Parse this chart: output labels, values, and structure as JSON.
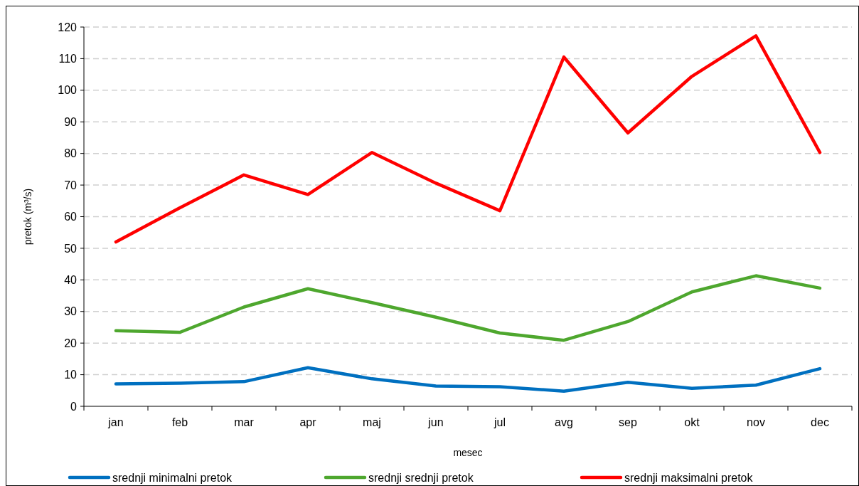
{
  "chart_data": {
    "type": "line",
    "xlabel": "mesec",
    "ylabel": "pretok (m³/s)",
    "categories": [
      "jan",
      "feb",
      "mar",
      "apr",
      "maj",
      "jun",
      "jul",
      "avg",
      "sep",
      "okt",
      "nov",
      "dec"
    ],
    "series": [
      {
        "name": "srednji minimalni pretok",
        "color": "#0070c0",
        "values": [
          7.1,
          7.3,
          7.8,
          12.2,
          8.7,
          6.4,
          6.2,
          4.8,
          7.6,
          5.7,
          6.7,
          11.9
        ]
      },
      {
        "name": "srednji srednji pretok",
        "color": "#4ea72e",
        "values": [
          23.9,
          23.4,
          31.4,
          37.2,
          32.8,
          28.2,
          23.2,
          20.9,
          26.8,
          36.2,
          41.3,
          37.4
        ]
      },
      {
        "name": "srednji maksimalni pretok",
        "color": "#ff0000",
        "values": [
          52,
          62.8,
          73.2,
          67,
          80.3,
          70.6,
          61.9,
          110.5,
          86.5,
          104.4,
          117.2,
          80.3
        ]
      }
    ],
    "ylim": [
      0,
      120
    ],
    "yticks": [
      0,
      10,
      20,
      30,
      40,
      50,
      60,
      70,
      80,
      90,
      100,
      110,
      120
    ],
    "grid": "y",
    "legend": "bottom",
    "line_style": "solid",
    "marker": "none"
  }
}
